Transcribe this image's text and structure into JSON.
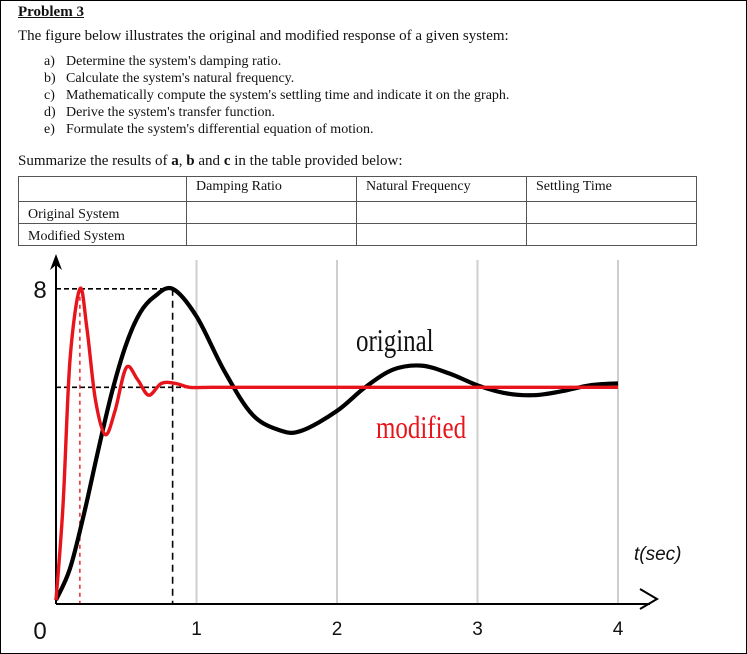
{
  "problem": {
    "title": "Problem 3",
    "intro": "The figure below illustrates the original and modified response of a given system:",
    "tasks": [
      {
        "letter": "a)",
        "text": "Determine the system's damping ratio."
      },
      {
        "letter": "b)",
        "text": "Calculate the system's natural frequency."
      },
      {
        "letter": "c)",
        "text": "Mathematically compute the system's settling time and indicate it on the graph."
      },
      {
        "letter": "d)",
        "text": "Derive the system's transfer function."
      },
      {
        "letter": "e)",
        "text": "Formulate the system's differential equation of motion."
      }
    ],
    "summary_parts": [
      "Summarize the results of ",
      "a",
      ", ",
      "b",
      " and ",
      "c",
      " in the table provided below:"
    ]
  },
  "table": {
    "headers": [
      "",
      "Damping Ratio",
      "Natural Frequency",
      "Settling Time"
    ],
    "rows": [
      {
        "label": "Original System",
        "cells": [
          "",
          "",
          ""
        ]
      },
      {
        "label": "Modified System",
        "cells": [
          "",
          "",
          ""
        ]
      }
    ]
  },
  "chart_data": {
    "type": "line",
    "xlabel": "t(sec)",
    "x_ticks": [
      "0",
      "1",
      "2",
      "3",
      "4"
    ],
    "y_ticks": [
      "8"
    ],
    "xlim": [
      0,
      4.2
    ],
    "ylim": [
      0,
      8.6
    ],
    "grid": true,
    "series": [
      {
        "name": "original",
        "color": "#000000",
        "peak_time": 0.83,
        "peak_value": 8.0,
        "final_value": 5.5,
        "x": [
          0,
          0.1,
          0.2,
          0.3,
          0.4,
          0.5,
          0.6,
          0.7,
          0.83,
          1.0,
          1.2,
          1.4,
          1.6,
          1.75,
          2.0,
          2.2,
          2.4,
          2.6,
          2.8,
          3.0,
          3.2,
          3.4,
          3.6,
          3.8,
          4.0
        ],
        "y": [
          0.1,
          0.9,
          2.3,
          3.9,
          5.4,
          6.6,
          7.4,
          7.8,
          8.0,
          7.3,
          5.9,
          4.8,
          4.4,
          4.4,
          4.9,
          5.5,
          5.95,
          6.05,
          5.85,
          5.55,
          5.35,
          5.3,
          5.4,
          5.55,
          5.6
        ]
      },
      {
        "name": "modified",
        "color": "#e8141b",
        "peak_time": 0.17,
        "peak_value": 8.0,
        "final_value": 5.5,
        "x": [
          0,
          0.05,
          0.1,
          0.17,
          0.22,
          0.28,
          0.35,
          0.42,
          0.5,
          0.58,
          0.66,
          0.75,
          0.85,
          0.95,
          1.1,
          1.3,
          1.6,
          2.0,
          2.5,
          3.0,
          3.5,
          4.0
        ],
        "y": [
          0.1,
          2.5,
          6.2,
          8.0,
          7.0,
          5.2,
          4.3,
          4.9,
          6.0,
          5.7,
          5.3,
          5.6,
          5.6,
          5.5,
          5.5,
          5.5,
          5.5,
          5.5,
          5.5,
          5.5,
          5.5,
          5.5
        ]
      }
    ]
  }
}
